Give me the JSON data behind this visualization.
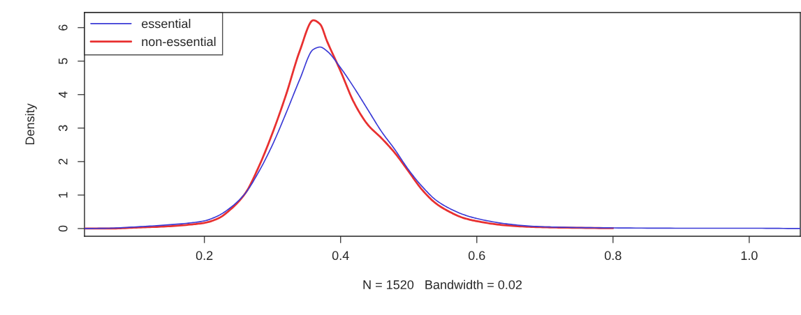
{
  "chart_data": {
    "type": "line",
    "xlabel": "N = 1520   Bandwidth = 0.02",
    "ylabel": "Density",
    "x": [
      0.024,
      0.06,
      0.1,
      0.14,
      0.18,
      0.2,
      0.22,
      0.24,
      0.26,
      0.28,
      0.3,
      0.32,
      0.34,
      0.36,
      0.37,
      0.38,
      0.4,
      0.42,
      0.44,
      0.46,
      0.48,
      0.5,
      0.52,
      0.54,
      0.56,
      0.58,
      0.6,
      0.64,
      0.68,
      0.72,
      0.8,
      0.9,
      1.0,
      1.075
    ],
    "series": [
      {
        "name": "essential",
        "color": "#3a3ad6",
        "values": [
          0,
          0.01,
          0.05,
          0.1,
          0.17,
          0.23,
          0.38,
          0.65,
          1.05,
          1.7,
          2.5,
          3.45,
          4.45,
          5.35,
          5.42,
          5.3,
          4.8,
          4.2,
          3.55,
          2.9,
          2.35,
          1.75,
          1.25,
          0.85,
          0.6,
          0.42,
          0.3,
          0.15,
          0.07,
          0.04,
          0.02,
          0.01,
          0.01,
          0
        ]
      },
      {
        "name": "non-essential",
        "color": "#e83030",
        "values": [
          0,
          0,
          0.03,
          0.06,
          0.12,
          0.17,
          0.3,
          0.6,
          1.05,
          1.85,
          2.85,
          4.0,
          5.3,
          6.22,
          6.1,
          5.6,
          4.7,
          3.75,
          3.1,
          2.7,
          2.25,
          1.7,
          1.15,
          0.75,
          0.5,
          0.32,
          0.22,
          0.1,
          0.05,
          0.03,
          0.01,
          null,
          null,
          null
        ]
      }
    ],
    "xlim": [
      0.024,
      1.075
    ],
    "ylim": [
      -0.23,
      6.45
    ],
    "xticks": [
      0.2,
      0.4,
      0.6,
      0.8,
      {
        "value": 1.0,
        "label": "1.0"
      }
    ],
    "yticks": [
      0,
      1,
      2,
      3,
      4,
      5,
      6
    ],
    "legend": "top left",
    "grid": false,
    "marker": "none",
    "line_style": "solid"
  }
}
